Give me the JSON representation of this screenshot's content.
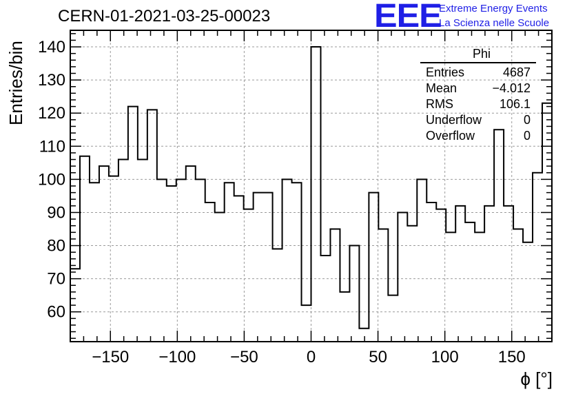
{
  "header": {
    "title": "CERN-01-2021-03-25-00023",
    "logo_mark": "EEE",
    "logo_line1": "Extreme Energy Events",
    "logo_line2": "La Scienza nelle Scuole",
    "logo_color": "#1f1fe6"
  },
  "stats_box": {
    "name": "Phi",
    "rows": [
      {
        "label": "Entries",
        "value": "4687"
      },
      {
        "label": "Mean",
        "value": "−4.012"
      },
      {
        "label": "RMS",
        "value": "106.1"
      },
      {
        "label": "Underflow",
        "value": "0"
      },
      {
        "label": "Overflow",
        "value": "0"
      }
    ]
  },
  "chart_data": {
    "type": "bar",
    "style": "step-histogram",
    "xlabel": "ϕ [°]",
    "ylabel": "Entries/bin",
    "xlim": [
      -180,
      180
    ],
    "ylim": [
      51,
      145
    ],
    "bin_width": 7.2,
    "xticks": [
      -150,
      -100,
      -50,
      0,
      50,
      100,
      150
    ],
    "xtick_labels": [
      "−150",
      "−100",
      "−50",
      "0",
      "50",
      "100",
      "150"
    ],
    "yticks": [
      60,
      70,
      80,
      90,
      100,
      110,
      120,
      130,
      140
    ],
    "ytick_labels": [
      "60",
      "70",
      "80",
      "90",
      "100",
      "110",
      "120",
      "130",
      "140"
    ],
    "grid": true,
    "line_color": "#000000",
    "values": [
      73,
      107,
      99,
      104,
      101,
      106,
      122,
      106,
      121,
      100,
      98,
      100,
      104,
      100,
      93,
      90,
      99,
      95,
      91,
      96,
      96,
      79,
      100,
      99,
      62,
      140,
      77,
      85,
      66,
      80,
      55,
      96,
      85,
      65,
      90,
      86,
      100,
      93,
      91,
      84,
      92,
      87,
      84,
      92,
      115,
      92,
      85,
      81,
      102,
      123
    ]
  }
}
